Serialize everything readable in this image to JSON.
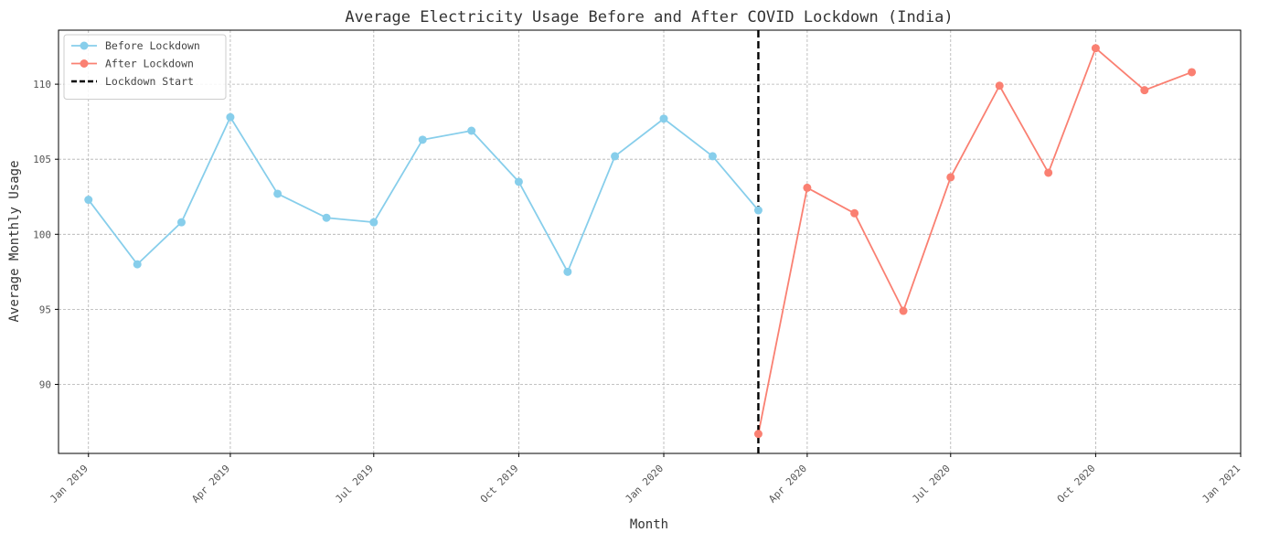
{
  "chart_data": {
    "type": "line",
    "title": "Average Electricity Usage Before and After COVID Lockdown (India)",
    "xlabel": "Month",
    "ylabel": "Average Monthly Usage",
    "x_range": [
      "2018-12-13",
      "2021-01-01"
    ],
    "ylim": [
      85.4,
      113.6
    ],
    "y_ticks": [
      90,
      95,
      100,
      105,
      110
    ],
    "x_ticks": [
      {
        "date": "2019-01-01",
        "label": "Jan 2019"
      },
      {
        "date": "2019-04-01",
        "label": "Apr 2019"
      },
      {
        "date": "2019-07-01",
        "label": "Jul 2019"
      },
      {
        "date": "2019-10-01",
        "label": "Oct 2019"
      },
      {
        "date": "2020-01-01",
        "label": "Jan 2020"
      },
      {
        "date": "2020-04-01",
        "label": "Apr 2020"
      },
      {
        "date": "2020-07-01",
        "label": "Jul 2020"
      },
      {
        "date": "2020-10-01",
        "label": "Oct 2020"
      },
      {
        "date": "2021-01-01",
        "label": "Jan 2021"
      }
    ],
    "grid": true,
    "legend_position": "top-left",
    "series": [
      {
        "name": "Before Lockdown",
        "color": "#87CEEB",
        "marker": "circle",
        "x": [
          "2019-01-01",
          "2019-02-01",
          "2019-03-01",
          "2019-04-01",
          "2019-05-01",
          "2019-06-01",
          "2019-07-01",
          "2019-08-01",
          "2019-09-01",
          "2019-10-01",
          "2019-11-01",
          "2019-12-01",
          "2020-01-01",
          "2020-02-01",
          "2020-03-01"
        ],
        "y": [
          102.3,
          98.0,
          100.8,
          107.8,
          102.7,
          101.1,
          100.8,
          106.3,
          106.9,
          103.5,
          97.5,
          105.2,
          107.7,
          105.2,
          101.6
        ]
      },
      {
        "name": "After Lockdown",
        "color": "#FA8072",
        "marker": "circle",
        "x": [
          "2020-03-01",
          "2020-04-01",
          "2020-05-01",
          "2020-06-01",
          "2020-07-01",
          "2020-08-01",
          "2020-09-01",
          "2020-10-01",
          "2020-11-01",
          "2020-12-01"
        ],
        "y": [
          86.7,
          103.1,
          101.4,
          94.9,
          103.8,
          109.9,
          104.1,
          112.4,
          109.6,
          110.8
        ]
      }
    ],
    "vlines": [
      {
        "name": "Lockdown Start",
        "x": "2020-03-01",
        "color": "#000000",
        "style": "dashed"
      }
    ]
  }
}
